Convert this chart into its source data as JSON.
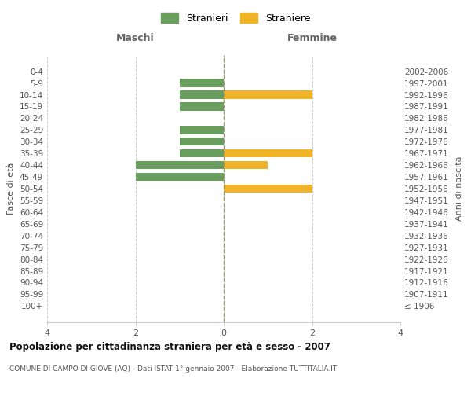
{
  "age_groups": [
    "100+",
    "95-99",
    "90-94",
    "85-89",
    "80-84",
    "75-79",
    "70-74",
    "65-69",
    "60-64",
    "55-59",
    "50-54",
    "45-49",
    "40-44",
    "35-39",
    "30-34",
    "25-29",
    "20-24",
    "15-19",
    "10-14",
    "5-9",
    "0-4"
  ],
  "birth_years": [
    "≤ 1906",
    "1907-1911",
    "1912-1916",
    "1917-1921",
    "1922-1926",
    "1927-1931",
    "1932-1936",
    "1937-1941",
    "1942-1946",
    "1947-1951",
    "1952-1956",
    "1957-1961",
    "1962-1966",
    "1967-1971",
    "1972-1976",
    "1977-1981",
    "1982-1986",
    "1987-1991",
    "1992-1996",
    "1997-2001",
    "2002-2006"
  ],
  "males": [
    0,
    0,
    0,
    0,
    0,
    0,
    0,
    0,
    0,
    0,
    0,
    -2,
    -2,
    -1,
    -1,
    -1,
    0,
    -1,
    -1,
    -1,
    0
  ],
  "females": [
    0,
    0,
    0,
    0,
    0,
    0,
    0,
    0,
    0,
    0,
    2,
    0,
    1,
    2,
    0,
    0,
    0,
    0,
    2,
    0,
    0
  ],
  "male_color": "#6a9e5e",
  "female_color": "#f0b429",
  "xlim": [
    -4,
    4
  ],
  "xlabel_left": "Maschi",
  "xlabel_right": "Femmine",
  "ylabel_left": "Fasce di età",
  "ylabel_right": "Anni di nascita",
  "xticks": [
    -4,
    -2,
    0,
    2,
    4
  ],
  "xticklabels": [
    "4",
    "2",
    "0",
    "2",
    "4"
  ],
  "legend_stranieri": "Stranieri",
  "legend_straniere": "Straniere",
  "title": "Popolazione per cittadinanza straniera per età e sesso - 2007",
  "subtitle": "COMUNE DI CAMPO DI GIOVE (AQ) - Dati ISTAT 1° gennaio 2007 - Elaborazione TUTTITALIA.IT",
  "bg_color": "#ffffff",
  "grid_color": "#cccccc",
  "bar_height": 0.7
}
